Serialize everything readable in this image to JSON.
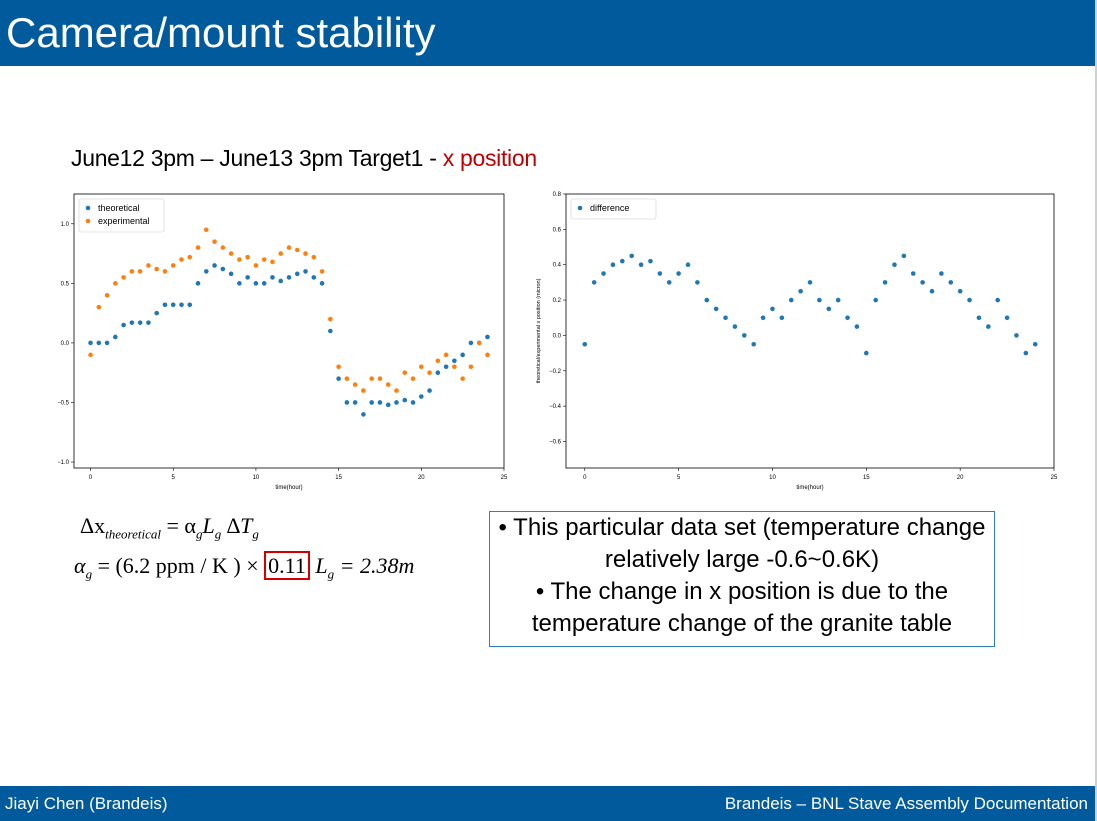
{
  "slide": {
    "title": "Camera/mount stability",
    "subtitle_main": "June12 3pm – June13 3pm  Target1 - ",
    "subtitle_highlight": "x position",
    "formula1": {
      "lhs": "Δx",
      "lhs_sub": "theoretical",
      "rhs": "= α",
      "rhs_sub1": "g",
      "mid": "L",
      "rhs_sub2": "g",
      "tail": " ∆T",
      "tail_sub": "g"
    },
    "formula2": {
      "alpha": "α",
      "alpha_sub": "g",
      "eq": " = (6.2 ppm / K  ) × ",
      "boxed": "0.11",
      "l": "  L",
      "l_sub": "g",
      "l_val": " = 2.38m"
    },
    "bullets": [
      "•   This particular data set (temperature change relatively large -0.6~0.6K)",
      "•  The change in x position is due to the temperature change of the granite table"
    ],
    "footer_left": "Jiayi Chen (Brandeis)",
    "footer_right": "Brandeis – BNL Stave Assembly Documentation"
  },
  "colors": {
    "title_bar": "#005a9c",
    "highlight": "#c00000",
    "series_blue": "#1f77b4",
    "series_orange": "#ff7f0e",
    "box_border": "#2e7fb8",
    "formula_box": "#d40000"
  },
  "chart_data": [
    {
      "type": "scatter",
      "title": "",
      "xlabel": "time(hour)",
      "ylabel": "theoretical/experimental x position (micron)",
      "xlim": [
        -1,
        25
      ],
      "ylim": [
        -1.05,
        1.25
      ],
      "xticks": [
        "0",
        "5",
        "10",
        "15",
        "20",
        "25"
      ],
      "yticks": [
        "−1.0",
        "−0.5",
        "0.0",
        "0.5",
        "1.0"
      ],
      "legend_position": "top-left",
      "series": [
        {
          "name": "theoretical",
          "color": "#1f77b4",
          "x": [
            0,
            0.5,
            1,
            1.5,
            2,
            2.5,
            3,
            3.5,
            4,
            4.5,
            5,
            5.5,
            6,
            6.5,
            7,
            7.5,
            8,
            8.5,
            9,
            9.5,
            10,
            10.5,
            11,
            11.5,
            12,
            12.5,
            13,
            13.5,
            14,
            14.5,
            15,
            15.5,
            16,
            16.5,
            17,
            17.5,
            18,
            18.5,
            19,
            19.5,
            20,
            20.5,
            21,
            21.5,
            22,
            22.5,
            23,
            23.5,
            24
          ],
          "y": [
            0,
            0,
            0,
            0.05,
            0.15,
            0.17,
            0.17,
            0.17,
            0.25,
            0.32,
            0.32,
            0.32,
            0.32,
            0.5,
            0.6,
            0.65,
            0.62,
            0.58,
            0.5,
            0.55,
            0.5,
            0.5,
            0.55,
            0.52,
            0.55,
            0.58,
            0.6,
            0.55,
            0.5,
            0.1,
            -0.3,
            -0.5,
            -0.5,
            -0.6,
            -0.5,
            -0.5,
            -0.52,
            -0.5,
            -0.48,
            -0.5,
            -0.45,
            -0.4,
            -0.25,
            -0.2,
            -0.15,
            -0.1,
            0,
            0,
            0.05
          ]
        },
        {
          "name": "experimental",
          "color": "#ff7f0e",
          "x": [
            0,
            0.5,
            1,
            1.5,
            2,
            2.5,
            3,
            3.5,
            4,
            4.5,
            5,
            5.5,
            6,
            6.5,
            7,
            7.5,
            8,
            8.5,
            9,
            9.5,
            10,
            10.5,
            11,
            11.5,
            12,
            12.5,
            13,
            13.5,
            14,
            14.5,
            15,
            15.5,
            16,
            16.5,
            17,
            17.5,
            18,
            18.5,
            19,
            19.5,
            20,
            20.5,
            21,
            21.5,
            22,
            22.5,
            23,
            23.5,
            24
          ],
          "y": [
            -0.1,
            0.3,
            0.4,
            0.5,
            0.55,
            0.6,
            0.6,
            0.65,
            0.62,
            0.6,
            0.65,
            0.7,
            0.72,
            0.8,
            0.95,
            0.85,
            0.8,
            0.75,
            0.7,
            0.72,
            0.65,
            0.7,
            0.68,
            0.75,
            0.8,
            0.78,
            0.75,
            0.72,
            0.6,
            0.2,
            -0.2,
            -0.3,
            -0.35,
            -0.4,
            -0.3,
            -0.3,
            -0.35,
            -0.4,
            -0.25,
            -0.3,
            -0.2,
            -0.25,
            -0.15,
            -0.1,
            -0.2,
            -0.3,
            -0.2,
            0,
            -0.1
          ]
        }
      ]
    },
    {
      "type": "scatter",
      "title": "",
      "xlabel": "time(hour)",
      "ylabel": "theoretical/experimental x position (micron)",
      "xlim": [
        -1,
        25
      ],
      "ylim": [
        -0.75,
        0.8
      ],
      "xticks": [
        "0",
        "5",
        "10",
        "15",
        "20",
        "25"
      ],
      "yticks": [
        "−0.6",
        "−0.4",
        "−0.2",
        "0.0",
        "0.2",
        "0.4",
        "0.6",
        "0.8"
      ],
      "legend_position": "top-left",
      "series": [
        {
          "name": "difference",
          "color": "#1f77b4",
          "x": [
            0,
            0.5,
            1,
            1.5,
            2,
            2.5,
            3,
            3.5,
            4,
            4.5,
            5,
            5.5,
            6,
            6.5,
            7,
            7.5,
            8,
            8.5,
            9,
            9.5,
            10,
            10.5,
            11,
            11.5,
            12,
            12.5,
            13,
            13.5,
            14,
            14.5,
            15,
            15.5,
            16,
            16.5,
            17,
            17.5,
            18,
            18.5,
            19,
            19.5,
            20,
            20.5,
            21,
            21.5,
            22,
            22.5,
            23,
            23.5,
            24
          ],
          "y": [
            -0.05,
            0.3,
            0.35,
            0.4,
            0.42,
            0.45,
            0.4,
            0.42,
            0.35,
            0.3,
            0.35,
            0.4,
            0.3,
            0.2,
            0.15,
            0.1,
            0.05,
            0,
            -0.05,
            0.1,
            0.15,
            0.1,
            0.2,
            0.25,
            0.3,
            0.2,
            0.15,
            0.2,
            0.1,
            0.05,
            -0.1,
            0.2,
            0.3,
            0.4,
            0.45,
            0.35,
            0.3,
            0.25,
            0.35,
            0.3,
            0.25,
            0.2,
            0.1,
            0.05,
            0.2,
            0.1,
            0,
            -0.1,
            -0.05
          ]
        }
      ]
    }
  ]
}
